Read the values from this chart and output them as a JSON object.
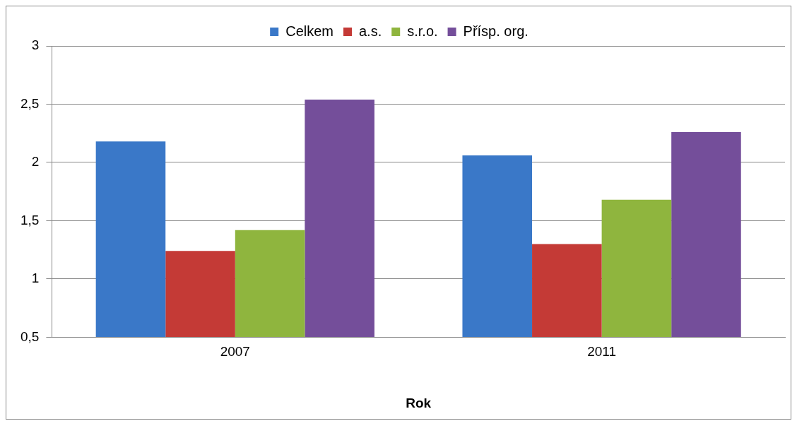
{
  "chart_data": {
    "type": "bar",
    "xlabel": "Rok",
    "categories": [
      "2007",
      "2011"
    ],
    "series": [
      {
        "name": "Celkem",
        "color": "#3a78c8",
        "values": [
          2.18,
          2.06
        ]
      },
      {
        "name": "a.s.",
        "color": "#c43a36",
        "values": [
          1.24,
          1.3
        ]
      },
      {
        "name": "s.r.o.",
        "color": "#8fb53e",
        "values": [
          1.42,
          1.68
        ]
      },
      {
        "name": "Přísp. org.",
        "color": "#744e9a",
        "values": [
          2.54,
          2.26
        ]
      }
    ],
    "ylim": [
      0.5,
      3
    ],
    "yticks": [
      {
        "value": 0.5,
        "label": "0,5"
      },
      1,
      {
        "value": 1.5,
        "label": "1,5"
      },
      2,
      {
        "value": 2.5,
        "label": "2,5"
      },
      3
    ],
    "grid": "y",
    "legend": "top"
  }
}
